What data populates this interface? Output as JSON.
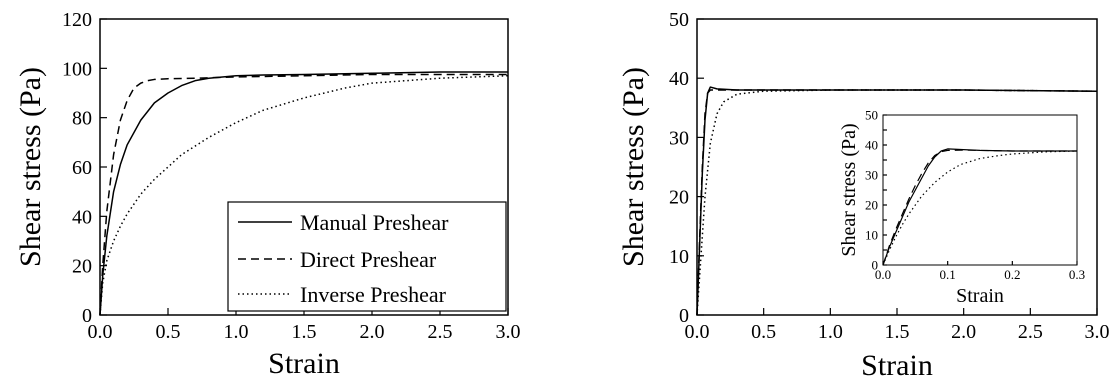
{
  "chart_data": [
    {
      "type": "line",
      "title": "",
      "xlabel": "Strain",
      "ylabel": "Shear stress (Pa)",
      "xlim": [
        0,
        3.0
      ],
      "ylim": [
        0,
        120
      ],
      "xticks": [
        "0.0",
        "0.5",
        "1.0",
        "1.5",
        "2.0",
        "2.5",
        "3.0"
      ],
      "yticks": [
        "0",
        "20",
        "40",
        "60",
        "80",
        "100",
        "120"
      ],
      "grid": false,
      "legend_position": "bottom-right",
      "series": [
        {
          "name": "Manual Preshear",
          "line_style": "solid",
          "x": [
            0,
            0.02,
            0.05,
            0.1,
            0.15,
            0.2,
            0.3,
            0.4,
            0.5,
            0.6,
            0.7,
            0.8,
            0.9,
            1.0,
            1.2,
            1.5,
            2.0,
            2.5,
            3.0
          ],
          "y": [
            0,
            16,
            32,
            50,
            61,
            69,
            79,
            86,
            90,
            93,
            95,
            96,
            96.5,
            97,
            97.3,
            97.5,
            98,
            98.5,
            98.5
          ]
        },
        {
          "name": "Direct Preshear",
          "line_style": "dashed",
          "x": [
            0,
            0.02,
            0.05,
            0.1,
            0.15,
            0.2,
            0.25,
            0.3,
            0.35,
            0.4,
            0.5,
            0.7,
            1.0,
            1.5,
            2.0,
            2.5,
            3.0
          ],
          "y": [
            0,
            20,
            42,
            65,
            79,
            87,
            92,
            94,
            95,
            95.5,
            95.8,
            96,
            96.5,
            97,
            97.5,
            97.5,
            97.5
          ]
        },
        {
          "name": "Inverse Preshear",
          "line_style": "dotted",
          "x": [
            0,
            0.02,
            0.05,
            0.1,
            0.15,
            0.2,
            0.3,
            0.4,
            0.5,
            0.6,
            0.8,
            1.0,
            1.2,
            1.5,
            1.8,
            2.0,
            2.5,
            3.0
          ],
          "y": [
            0,
            13,
            22,
            30,
            36,
            41,
            49,
            55,
            60,
            65,
            72,
            78,
            83,
            88,
            92,
            94,
            96,
            97
          ]
        }
      ]
    },
    {
      "type": "line",
      "title": "",
      "xlabel": "Strain",
      "ylabel": "Shear stress (Pa)",
      "xlim": [
        0,
        3.0
      ],
      "ylim": [
        0,
        50
      ],
      "xticks": [
        "0.0",
        "0.5",
        "1.0",
        "1.5",
        "2.0",
        "2.5",
        "3.0"
      ],
      "yticks": [
        "0",
        "10",
        "20",
        "30",
        "40",
        "50"
      ],
      "grid": false,
      "legend_position": "none",
      "series": [
        {
          "line_style": "solid",
          "x": [
            0,
            0.02,
            0.04,
            0.06,
            0.08,
            0.1,
            0.15,
            0.3,
            0.5,
            1.0,
            2.0,
            3.0
          ],
          "y": [
            0,
            12,
            24,
            33,
            37.5,
            38.5,
            38.2,
            38,
            38,
            38,
            38,
            37.8
          ]
        },
        {
          "line_style": "dashed",
          "x": [
            0,
            0.02,
            0.04,
            0.06,
            0.08,
            0.1,
            0.15,
            0.3,
            0.5,
            1.0,
            2.0,
            3.0
          ],
          "y": [
            0,
            13,
            25,
            34,
            37.5,
            38,
            38,
            38,
            38,
            38,
            38,
            37.8
          ]
        },
        {
          "line_style": "dotted",
          "x": [
            0,
            0.03,
            0.06,
            0.1,
            0.15,
            0.2,
            0.3,
            0.5,
            1.0,
            2.0,
            3.0
          ],
          "y": [
            0,
            10,
            20,
            29,
            34,
            36,
            37.3,
            37.8,
            38,
            38,
            37.8
          ]
        }
      ]
    },
    {
      "type": "line",
      "title": "",
      "xlabel": "Strain",
      "ylabel": "Shear stress (Pa)",
      "xlim": [
        0,
        0.3
      ],
      "ylim": [
        0,
        50
      ],
      "xticks": [
        "0.0",
        "0.1",
        "0.2",
        "0.3"
      ],
      "yticks": [
        "0",
        "5",
        "10",
        "15",
        "20",
        "25",
        "30",
        "35",
        "40",
        "45",
        "50"
      ],
      "grid": false,
      "legend_position": "none",
      "series": [
        {
          "line_style": "solid",
          "x": [
            0,
            0.01,
            0.02,
            0.03,
            0.04,
            0.05,
            0.06,
            0.07,
            0.08,
            0.09,
            0.1,
            0.12,
            0.15,
            0.2,
            0.25,
            0.3
          ],
          "y": [
            0,
            6,
            11,
            16,
            21,
            25,
            29,
            33,
            36,
            38,
            38.7,
            38.5,
            38.2,
            38,
            38,
            38
          ]
        },
        {
          "line_style": "dashed",
          "x": [
            0,
            0.01,
            0.02,
            0.03,
            0.04,
            0.05,
            0.06,
            0.07,
            0.08,
            0.09,
            0.1,
            0.12,
            0.15,
            0.2,
            0.25,
            0.3
          ],
          "y": [
            0,
            6.5,
            12,
            17,
            22,
            26.5,
            30.5,
            34,
            36.5,
            37.8,
            38.2,
            38.3,
            38.2,
            38,
            38,
            38
          ]
        },
        {
          "line_style": "dotted",
          "x": [
            0,
            0.01,
            0.02,
            0.03,
            0.04,
            0.05,
            0.06,
            0.08,
            0.1,
            0.12,
            0.15,
            0.18,
            0.2,
            0.25,
            0.3
          ],
          "y": [
            0,
            5,
            9.5,
            13.5,
            17,
            20,
            23,
            27.5,
            31,
            33.5,
            35.5,
            36.5,
            37,
            37.7,
            38
          ]
        }
      ]
    }
  ]
}
